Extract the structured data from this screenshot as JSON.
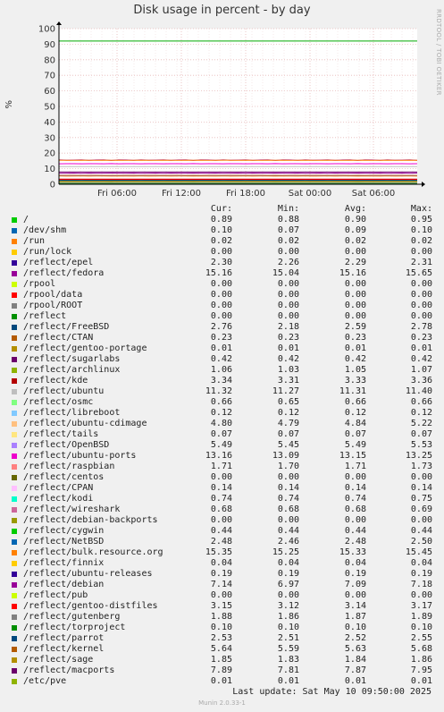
{
  "title": "Disk usage in percent - by day",
  "side_label": "RRDTOOL / TOBI OETIKER",
  "footer": {
    "last_update": "Last update:  Sat May 10 09:50:00 2025",
    "munin": "Munin 2.0.33-1"
  },
  "legend_headers": [
    "Cur:",
    "Min:",
    "Avg:",
    "Max:"
  ],
  "chart_data": {
    "type": "line",
    "title": "Disk usage in percent - by day",
    "ylabel": "%",
    "ylim": [
      0,
      100
    ],
    "yticks": [
      "0",
      "10",
      "20",
      "30",
      "40",
      "50",
      "60",
      "70",
      "80",
      "90",
      "100"
    ],
    "xticks": [
      "Fri 06:00",
      "Fri 12:00",
      "Fri 18:00",
      "Sat 00:00",
      "Sat 06:00"
    ],
    "grid": true,
    "warning_line": 92,
    "series": [
      {
        "name": "/",
        "color": "#00cc00",
        "cur": "0.89",
        "min": "0.88",
        "avg": "0.90",
        "max": "0.95"
      },
      {
        "name": "/dev/shm",
        "color": "#0066b3",
        "cur": "0.10",
        "min": "0.07",
        "avg": "0.09",
        "max": "0.10"
      },
      {
        "name": "/run",
        "color": "#ff8000",
        "cur": "0.02",
        "min": "0.02",
        "avg": "0.02",
        "max": "0.02"
      },
      {
        "name": "/run/lock",
        "color": "#ffcc00",
        "cur": "0.00",
        "min": "0.00",
        "avg": "0.00",
        "max": "0.00"
      },
      {
        "name": "/reflect/epel",
        "color": "#330099",
        "cur": "2.30",
        "min": "2.26",
        "avg": "2.29",
        "max": "2.31"
      },
      {
        "name": "/reflect/fedora",
        "color": "#990099",
        "cur": "15.16",
        "min": "15.04",
        "avg": "15.16",
        "max": "15.65"
      },
      {
        "name": "/rpool",
        "color": "#ccff00",
        "cur": "0.00",
        "min": "0.00",
        "avg": "0.00",
        "max": "0.00"
      },
      {
        "name": "/rpool/data",
        "color": "#ff0000",
        "cur": "0.00",
        "min": "0.00",
        "avg": "0.00",
        "max": "0.00"
      },
      {
        "name": "/rpool/ROOT",
        "color": "#808080",
        "cur": "0.00",
        "min": "0.00",
        "avg": "0.00",
        "max": "0.00"
      },
      {
        "name": "/reflect",
        "color": "#008f00",
        "cur": "0.00",
        "min": "0.00",
        "avg": "0.00",
        "max": "0.00"
      },
      {
        "name": "/reflect/FreeBSD",
        "color": "#00487d",
        "cur": "2.76",
        "min": "2.18",
        "avg": "2.59",
        "max": "2.78"
      },
      {
        "name": "/reflect/CTAN",
        "color": "#b35a00",
        "cur": "0.23",
        "min": "0.23",
        "avg": "0.23",
        "max": "0.23"
      },
      {
        "name": "/reflect/gentoo-portage",
        "color": "#b38f00",
        "cur": "0.01",
        "min": "0.01",
        "avg": "0.01",
        "max": "0.01"
      },
      {
        "name": "/reflect/sugarlabs",
        "color": "#6b006b",
        "cur": "0.42",
        "min": "0.42",
        "avg": "0.42",
        "max": "0.42"
      },
      {
        "name": "/reflect/archlinux",
        "color": "#8fb300",
        "cur": "1.06",
        "min": "1.03",
        "avg": "1.05",
        "max": "1.07"
      },
      {
        "name": "/reflect/kde",
        "color": "#b30000",
        "cur": "3.34",
        "min": "3.31",
        "avg": "3.33",
        "max": "3.36"
      },
      {
        "name": "/reflect/ubuntu",
        "color": "#bebebe",
        "cur": "11.32",
        "min": "11.27",
        "avg": "11.31",
        "max": "11.40"
      },
      {
        "name": "/reflect/osmc",
        "color": "#80ff80",
        "cur": "0.66",
        "min": "0.65",
        "avg": "0.66",
        "max": "0.66"
      },
      {
        "name": "/reflect/libreboot",
        "color": "#80c9ff",
        "cur": "0.12",
        "min": "0.12",
        "avg": "0.12",
        "max": "0.12"
      },
      {
        "name": "/reflect/ubuntu-cdimage",
        "color": "#ffc080",
        "cur": "4.80",
        "min": "4.79",
        "avg": "4.84",
        "max": "5.22"
      },
      {
        "name": "/reflect/tails",
        "color": "#ffe680",
        "cur": "0.07",
        "min": "0.07",
        "avg": "0.07",
        "max": "0.07"
      },
      {
        "name": "/reflect/OpenBSD",
        "color": "#aa80ff",
        "cur": "5.49",
        "min": "5.45",
        "avg": "5.49",
        "max": "5.53"
      },
      {
        "name": "/reflect/ubuntu-ports",
        "color": "#ee00cc",
        "cur": "13.16",
        "min": "13.09",
        "avg": "13.15",
        "max": "13.25"
      },
      {
        "name": "/reflect/raspbian",
        "color": "#ff8080",
        "cur": "1.71",
        "min": "1.70",
        "avg": "1.71",
        "max": "1.73"
      },
      {
        "name": "/reflect/centos",
        "color": "#666600",
        "cur": "0.00",
        "min": "0.00",
        "avg": "0.00",
        "max": "0.00"
      },
      {
        "name": "/reflect/CPAN",
        "color": "#ffbfff",
        "cur": "0.14",
        "min": "0.14",
        "avg": "0.14",
        "max": "0.14"
      },
      {
        "name": "/reflect/kodi",
        "color": "#00ffcc",
        "cur": "0.74",
        "min": "0.74",
        "avg": "0.74",
        "max": "0.75"
      },
      {
        "name": "/reflect/wireshark",
        "color": "#cc6699",
        "cur": "0.68",
        "min": "0.68",
        "avg": "0.68",
        "max": "0.69"
      },
      {
        "name": "/reflect/debian-backports",
        "color": "#999900",
        "cur": "0.00",
        "min": "0.00",
        "avg": "0.00",
        "max": "0.00"
      },
      {
        "name": "/reflect/cygwin",
        "color": "#00cc00",
        "cur": "0.44",
        "min": "0.44",
        "avg": "0.44",
        "max": "0.44"
      },
      {
        "name": "/reflect/NetBSD",
        "color": "#0066b3",
        "cur": "2.48",
        "min": "2.46",
        "avg": "2.48",
        "max": "2.50"
      },
      {
        "name": "/reflect/bulk.resource.org",
        "color": "#ff8000",
        "cur": "15.35",
        "min": "15.25",
        "avg": "15.33",
        "max": "15.45"
      },
      {
        "name": "/reflect/finnix",
        "color": "#ffcc00",
        "cur": "0.04",
        "min": "0.04",
        "avg": "0.04",
        "max": "0.04"
      },
      {
        "name": "/reflect/ubuntu-releases",
        "color": "#330099",
        "cur": "0.19",
        "min": "0.19",
        "avg": "0.19",
        "max": "0.19"
      },
      {
        "name": "/reflect/debian",
        "color": "#990099",
        "cur": "7.14",
        "min": "6.97",
        "avg": "7.09",
        "max": "7.18"
      },
      {
        "name": "/reflect/pub",
        "color": "#ccff00",
        "cur": "0.00",
        "min": "0.00",
        "avg": "0.00",
        "max": "0.00"
      },
      {
        "name": "/reflect/gentoo-distfiles",
        "color": "#ff0000",
        "cur": "3.15",
        "min": "3.12",
        "avg": "3.14",
        "max": "3.17"
      },
      {
        "name": "/reflect/gutenberg",
        "color": "#808080",
        "cur": "1.88",
        "min": "1.86",
        "avg": "1.87",
        "max": "1.89"
      },
      {
        "name": "/reflect/torproject",
        "color": "#008f00",
        "cur": "0.10",
        "min": "0.10",
        "avg": "0.10",
        "max": "0.10"
      },
      {
        "name": "/reflect/parrot",
        "color": "#00487d",
        "cur": "2.53",
        "min": "2.51",
        "avg": "2.52",
        "max": "2.55"
      },
      {
        "name": "/reflect/kernel",
        "color": "#b35a00",
        "cur": "5.64",
        "min": "5.59",
        "avg": "5.63",
        "max": "5.68"
      },
      {
        "name": "/reflect/sage",
        "color": "#b38f00",
        "cur": "1.85",
        "min": "1.83",
        "avg": "1.84",
        "max": "1.86"
      },
      {
        "name": "/reflect/macports",
        "color": "#6b006b",
        "cur": "7.89",
        "min": "7.81",
        "avg": "7.87",
        "max": "7.95"
      },
      {
        "name": "/etc/pve",
        "color": "#8fb300",
        "cur": "0.01",
        "min": "0.01",
        "avg": "0.01",
        "max": "0.01"
      }
    ]
  }
}
